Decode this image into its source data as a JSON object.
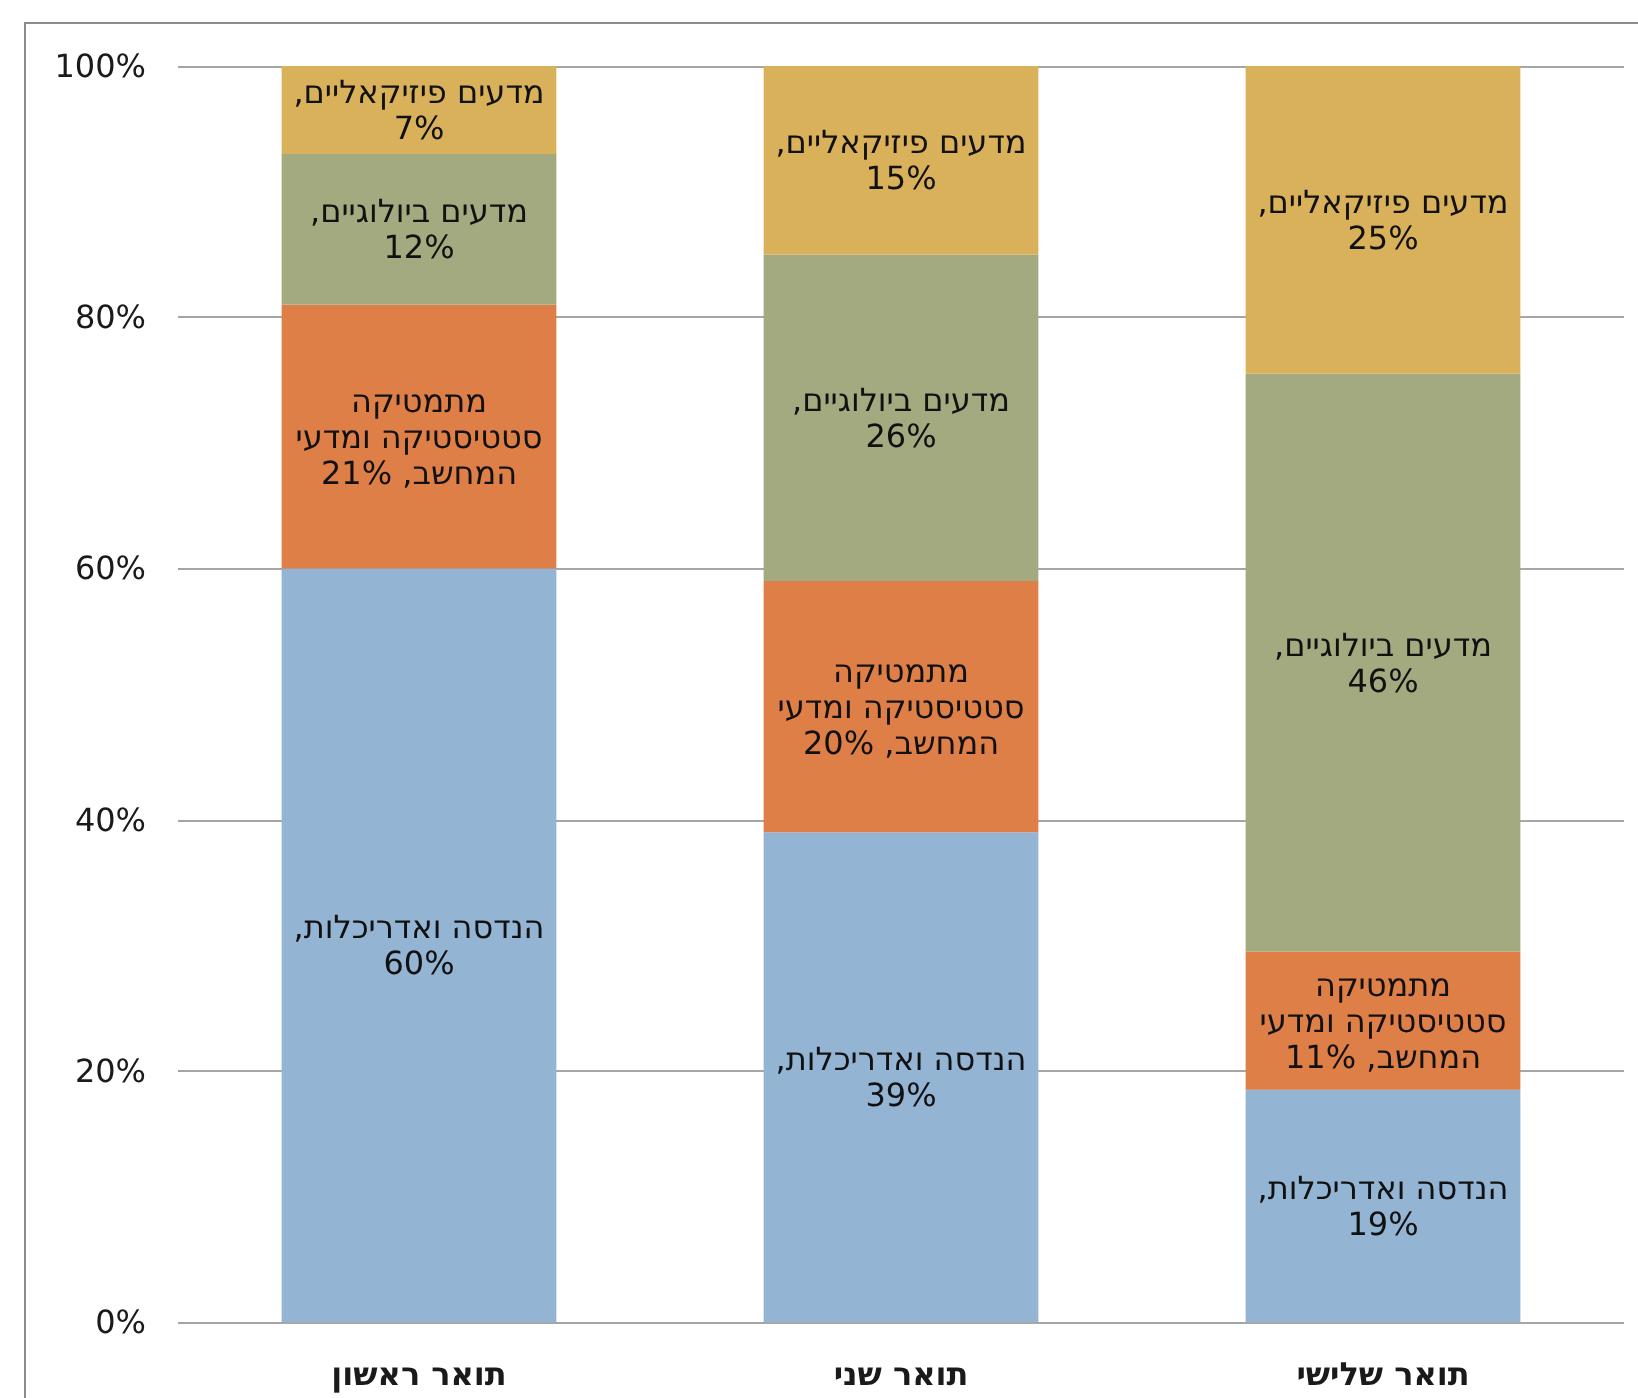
{
  "chart_data": {
    "type": "bar",
    "stacked": true,
    "grid": "y",
    "categories": [
      "תואר ראשון",
      "תואר שני",
      "תואר שלישי"
    ],
    "ylim": [
      0,
      100
    ],
    "yticks": [
      {
        "value": 0,
        "label": "0%"
      },
      {
        "value": 20,
        "label": "20%"
      },
      {
        "value": 40,
        "label": "40%"
      },
      {
        "value": 60,
        "label": "60%"
      },
      {
        "value": 80,
        "label": "80%"
      },
      {
        "value": 100,
        "label": "100%"
      }
    ],
    "series": [
      {
        "name": "הנדסה ואדריכלות,",
        "color": "#94b4d4",
        "values": [
          60,
          39,
          18.5
        ],
        "value_labels": [
          "60%",
          "39%",
          "19%"
        ]
      },
      {
        "name": "מתמטיקה סטטיסטיקה ומדעי המחשב,",
        "color": "#df7f48",
        "values": [
          21,
          20,
          11
        ],
        "value_labels": [
          "21%",
          "20%",
          "11%"
        ]
      },
      {
        "name": "מדעים ביולוגיים,",
        "color": "#a4aa7f",
        "values": [
          12,
          26,
          46
        ],
        "value_labels": [
          "12%",
          "26%",
          "46%"
        ]
      },
      {
        "name": "מדעים פיזיקאליים,",
        "color": "#d9b15b",
        "values": [
          7,
          15,
          24.5
        ],
        "value_labels": [
          "7%",
          "15%",
          "25%"
        ]
      }
    ]
  }
}
